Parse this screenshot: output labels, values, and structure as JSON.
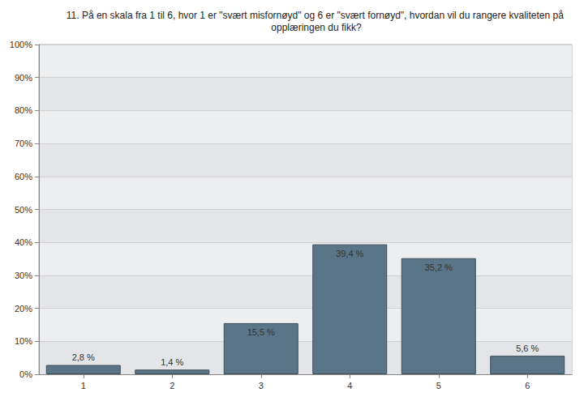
{
  "chart_data": {
    "type": "bar",
    "title": "11. På en skala fra 1 til 6, hvor 1 er \"svært misfornøyd\" og 6 er \"svært fornøyd\", hvordan vil du rangere kvaliteten på opplæringen du fikk?",
    "categories": [
      "1",
      "2",
      "3",
      "4",
      "5",
      "6"
    ],
    "values": [
      2.8,
      1.4,
      15.5,
      39.4,
      35.2,
      5.6
    ],
    "value_labels": [
      "2,8 %",
      "1,4 %",
      "15,5 %",
      "39,4 %",
      "35,2 %",
      "5,6 %"
    ],
    "data_labels": true,
    "color": "#5a7587",
    "ylim": [
      0,
      100
    ],
    "yticks": [
      {
        "value": 0,
        "label": "0%"
      },
      {
        "value": 10,
        "label": "10%"
      },
      {
        "value": 20,
        "label": "20%"
      },
      {
        "value": 30,
        "label": "30%"
      },
      {
        "value": 40,
        "label": "40%"
      },
      {
        "value": 50,
        "label": "50%"
      },
      {
        "value": 60,
        "label": "60%"
      },
      {
        "value": 70,
        "label": "70%"
      },
      {
        "value": 80,
        "label": "80%"
      },
      {
        "value": 90,
        "label": "90%"
      },
      {
        "value": 100,
        "label": "100%"
      }
    ],
    "grid": true
  }
}
